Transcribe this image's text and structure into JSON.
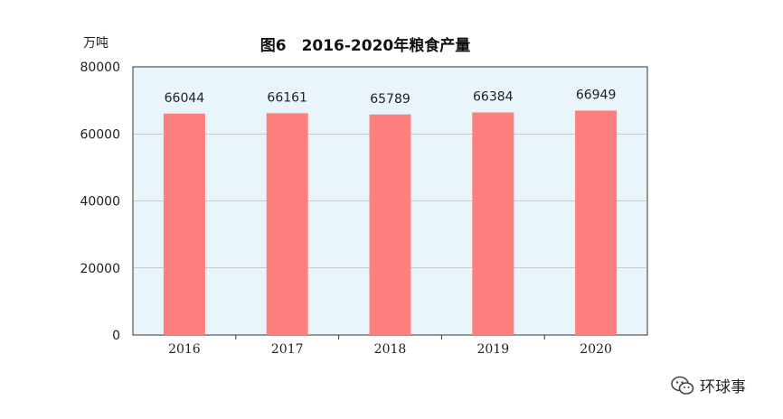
{
  "chart_data": {
    "type": "bar",
    "title": "图6　2016-2020年粮食产量",
    "ylabel": "万吨",
    "xlabel": "",
    "categories": [
      "2016",
      "2017",
      "2018",
      "2019",
      "2020"
    ],
    "values": [
      66044,
      66161,
      65789,
      66384,
      66949
    ],
    "ylim": [
      0,
      80000
    ],
    "yticks": [
      0,
      20000,
      40000,
      60000,
      80000
    ],
    "grid": true,
    "legend": "none",
    "colors": {
      "bar": "#ff7f7f",
      "plot_bg": "#eaf4fb",
      "grid": "#a0a0a0",
      "axis": "#333333"
    }
  },
  "watermark": {
    "text": "环球事",
    "icon": "wechat-icon"
  }
}
